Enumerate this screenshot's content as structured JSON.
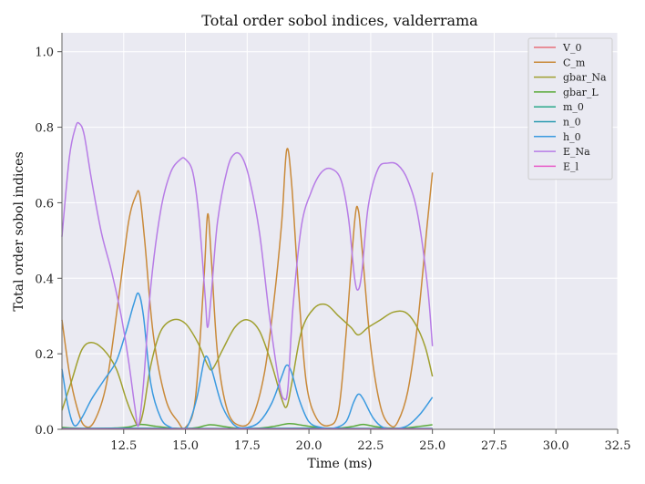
{
  "chart_data": {
    "type": "line",
    "title": "Total order sobol indices, valderrama",
    "xlabel": "Time (ms)",
    "ylabel": "Total order sobol indices",
    "xlim": [
      10.0,
      32.5
    ],
    "ylim": [
      0.0,
      1.05
    ],
    "xticks": [
      12.5,
      15.0,
      17.5,
      20.0,
      22.5,
      25.0,
      27.5,
      30.0,
      32.5
    ],
    "xtick_labels": [
      "12.5",
      "15.0",
      "17.5",
      "20.0",
      "22.5",
      "25.0",
      "27.5",
      "30.0",
      "32.5"
    ],
    "yticks": [
      0.0,
      0.2,
      0.4,
      0.6,
      0.8,
      1.0
    ],
    "ytick_labels": [
      "0.0",
      "0.2",
      "0.4",
      "0.6",
      "0.8",
      "1.0"
    ],
    "grid": true,
    "legend_position": "top-right",
    "series": [
      {
        "name": "V_0",
        "color": "#e8707a",
        "x": [
          10.0,
          12.5,
          15.0,
          17.5,
          20.0,
          22.5,
          25.0
        ],
        "y": [
          0.001,
          0.001,
          0.001,
          0.001,
          0.001,
          0.001,
          0.001
        ]
      },
      {
        "name": "C_m",
        "color": "#c98a3a",
        "x": [
          10.0,
          10.3,
          10.6,
          10.9,
          11.3,
          11.8,
          12.3,
          12.7,
          13.0,
          13.15,
          13.35,
          13.7,
          14.2,
          14.7,
          15.0,
          15.4,
          15.75,
          15.9,
          16.05,
          16.3,
          16.7,
          17.2,
          17.7,
          18.2,
          18.6,
          18.9,
          19.1,
          19.3,
          19.6,
          19.9,
          20.3,
          20.8,
          21.2,
          21.5,
          21.85,
          22.0,
          22.15,
          22.5,
          22.9,
          23.3,
          23.6,
          24.0,
          24.4,
          24.8,
          25.0
        ],
        "y": [
          0.29,
          0.15,
          0.06,
          0.01,
          0.02,
          0.12,
          0.35,
          0.55,
          0.62,
          0.62,
          0.5,
          0.25,
          0.08,
          0.02,
          0.005,
          0.08,
          0.4,
          0.57,
          0.45,
          0.2,
          0.05,
          0.01,
          0.03,
          0.15,
          0.35,
          0.55,
          0.74,
          0.65,
          0.35,
          0.12,
          0.03,
          0.01,
          0.05,
          0.25,
          0.55,
          0.58,
          0.48,
          0.22,
          0.06,
          0.01,
          0.02,
          0.1,
          0.28,
          0.55,
          0.68
        ]
      },
      {
        "name": "gbar_Na",
        "color": "#a0a030",
        "x": [
          10.0,
          10.4,
          10.8,
          11.2,
          11.7,
          12.2,
          12.6,
          12.9,
          13.1,
          13.3,
          13.6,
          14.0,
          14.5,
          15.0,
          15.5,
          15.9,
          16.1,
          16.5,
          17.0,
          17.5,
          18.0,
          18.5,
          18.9,
          19.1,
          19.3,
          19.7,
          20.2,
          20.7,
          21.2,
          21.7,
          22.0,
          22.4,
          22.9,
          23.4,
          23.9,
          24.3,
          24.7,
          25.0
        ],
        "y": [
          0.05,
          0.13,
          0.21,
          0.23,
          0.21,
          0.16,
          0.08,
          0.03,
          0.01,
          0.05,
          0.17,
          0.26,
          0.29,
          0.28,
          0.23,
          0.17,
          0.16,
          0.21,
          0.27,
          0.29,
          0.26,
          0.17,
          0.08,
          0.06,
          0.12,
          0.26,
          0.32,
          0.33,
          0.3,
          0.27,
          0.25,
          0.27,
          0.29,
          0.31,
          0.31,
          0.28,
          0.22,
          0.14
        ]
      },
      {
        "name": "gbar_L",
        "color": "#5aaa3a",
        "x": [
          10.0,
          11.0,
          12.0,
          12.7,
          13.2,
          13.8,
          14.5,
          15.0,
          15.5,
          16.0,
          16.6,
          17.2,
          18.0,
          18.6,
          19.2,
          19.8,
          20.5,
          21.2,
          21.8,
          22.2,
          22.7,
          23.3,
          24.0,
          24.5,
          25.0
        ],
        "y": [
          0.005,
          0.002,
          0.003,
          0.006,
          0.013,
          0.008,
          0.003,
          0.002,
          0.005,
          0.012,
          0.007,
          0.002,
          0.003,
          0.008,
          0.015,
          0.01,
          0.004,
          0.003,
          0.008,
          0.013,
          0.007,
          0.003,
          0.004,
          0.008,
          0.012
        ]
      },
      {
        "name": "m_0",
        "color": "#2aa88a",
        "x": [
          10.0,
          12.5,
          15.0,
          17.5,
          20.0,
          22.5,
          25.0
        ],
        "y": [
          0.002,
          0.002,
          0.002,
          0.002,
          0.002,
          0.002,
          0.002
        ]
      },
      {
        "name": "n_0",
        "color": "#2a9ab0",
        "x": [
          10.0,
          12.5,
          15.0,
          17.5,
          20.0,
          22.5,
          25.0
        ],
        "y": [
          0.002,
          0.003,
          0.002,
          0.002,
          0.003,
          0.002,
          0.002
        ]
      },
      {
        "name": "h_0",
        "color": "#3a9ae0",
        "x": [
          10.0,
          10.25,
          10.5,
          10.8,
          11.2,
          11.7,
          12.2,
          12.6,
          12.9,
          13.1,
          13.3,
          13.6,
          14.0,
          14.4,
          14.8,
          15.1,
          15.45,
          15.75,
          15.9,
          16.1,
          16.5,
          17.0,
          17.5,
          18.0,
          18.5,
          18.9,
          19.1,
          19.3,
          19.6,
          20.0,
          20.5,
          21.0,
          21.5,
          21.8,
          22.0,
          22.2,
          22.6,
          23.0,
          23.5,
          24.0,
          24.5,
          25.0
        ],
        "y": [
          0.16,
          0.06,
          0.01,
          0.03,
          0.08,
          0.13,
          0.18,
          0.26,
          0.33,
          0.36,
          0.3,
          0.12,
          0.03,
          0.005,
          0.001,
          0.01,
          0.08,
          0.18,
          0.19,
          0.15,
          0.06,
          0.01,
          0.005,
          0.02,
          0.07,
          0.14,
          0.17,
          0.15,
          0.08,
          0.02,
          0.005,
          0.003,
          0.02,
          0.07,
          0.093,
          0.08,
          0.03,
          0.005,
          0.002,
          0.01,
          0.04,
          0.085
        ]
      },
      {
        "name": "E_Na",
        "color": "#b77ce6",
        "x": [
          10.0,
          10.3,
          10.55,
          10.7,
          10.9,
          11.2,
          11.6,
          12.0,
          12.4,
          12.7,
          12.95,
          13.1,
          13.3,
          13.6,
          14.0,
          14.4,
          14.8,
          15.0,
          15.3,
          15.55,
          15.8,
          15.9,
          16.05,
          16.3,
          16.7,
          17.0,
          17.3,
          17.6,
          18.0,
          18.4,
          18.8,
          19.0,
          19.15,
          19.35,
          19.7,
          20.1,
          20.5,
          20.9,
          21.3,
          21.6,
          21.85,
          22.0,
          22.15,
          22.4,
          22.8,
          23.2,
          23.6,
          24.0,
          24.4,
          24.8,
          25.0
        ],
        "y": [
          0.51,
          0.72,
          0.8,
          0.81,
          0.78,
          0.66,
          0.52,
          0.42,
          0.3,
          0.18,
          0.06,
          0.01,
          0.12,
          0.38,
          0.58,
          0.68,
          0.715,
          0.715,
          0.68,
          0.56,
          0.35,
          0.27,
          0.36,
          0.55,
          0.69,
          0.73,
          0.72,
          0.66,
          0.52,
          0.3,
          0.12,
          0.08,
          0.11,
          0.32,
          0.54,
          0.63,
          0.68,
          0.69,
          0.66,
          0.56,
          0.4,
          0.37,
          0.42,
          0.59,
          0.69,
          0.705,
          0.7,
          0.66,
          0.57,
          0.38,
          0.22
        ]
      },
      {
        "name": "E_l",
        "color": "#e85ac8",
        "x": [
          10.0,
          12.5,
          15.0,
          17.5,
          20.0,
          22.5,
          25.0
        ],
        "y": [
          0.001,
          0.001,
          0.001,
          0.001,
          0.001,
          0.001,
          0.001
        ]
      }
    ]
  }
}
